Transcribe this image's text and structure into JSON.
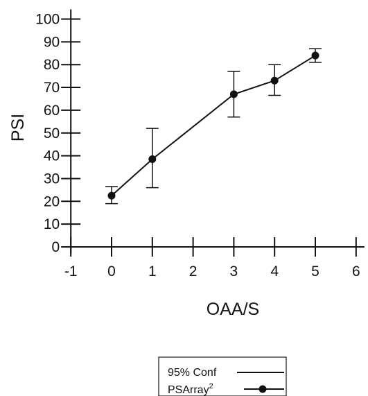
{
  "chart_data": {
    "type": "line",
    "xlabel": "OAA/S",
    "ylabel": "PSI",
    "xlim": [
      -1,
      6
    ],
    "ylim": [
      0,
      100
    ],
    "x_ticks": [
      "-1",
      "0",
      "1",
      "2",
      "3",
      "4",
      "5",
      "6"
    ],
    "y_ticks": [
      "0",
      "10",
      "20",
      "30",
      "40",
      "50",
      "60",
      "70",
      "80",
      "90",
      "100"
    ],
    "grid": false,
    "legend_placement": "bottom-center",
    "series": [
      {
        "name": "PSArray",
        "name_superscript": "2",
        "x": [
          0,
          1,
          3,
          4,
          5
        ],
        "y": [
          22.5,
          38.5,
          67,
          73,
          84
        ],
        "ci_low": [
          19,
          26,
          57,
          66.5,
          81
        ],
        "ci_high": [
          26.5,
          52,
          77,
          80,
          87
        ]
      }
    ],
    "error_bar_legend": "95% Conf",
    "colors": {
      "line": "#111111",
      "axis": "#111111",
      "background": "#ffffff"
    }
  }
}
